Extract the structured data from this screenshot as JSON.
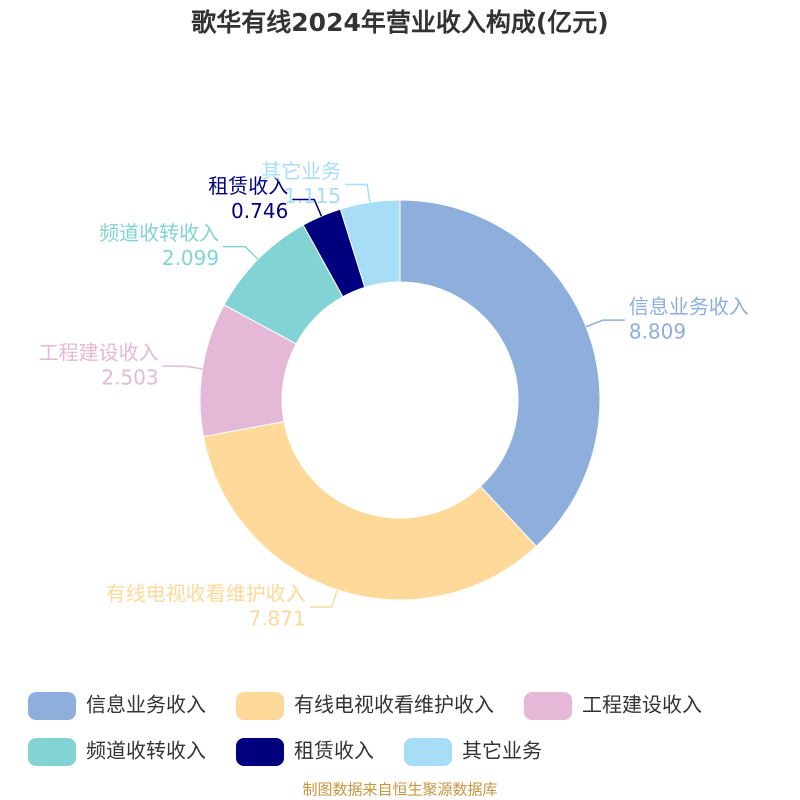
{
  "chart_data": {
    "type": "donut",
    "title": "歌华有线2024年营业收入构成(亿元)",
    "categories": [
      "信息业务收入",
      "有线电视收看维护收入",
      "工程建设收入",
      "频道收转收入",
      "租赁收入",
      "其它业务"
    ],
    "values": [
      8.809,
      7.871,
      2.503,
      2.099,
      0.746,
      1.115
    ],
    "colors": [
      "#8eaedc",
      "#ffd99a",
      "#e6b8d8",
      "#82d4d4",
      "#00007f",
      "#a8ddf7"
    ],
    "legend": "bottom",
    "source": "制图数据来自恒生聚源数据库"
  }
}
